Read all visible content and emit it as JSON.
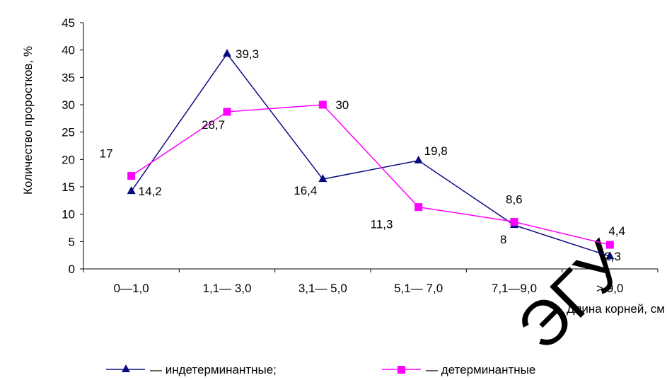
{
  "colors": {
    "indeterminate": "#0b0b80",
    "determinate": "#ff00ff",
    "axis": "#000000",
    "watermark": "#e6e6e6"
  },
  "chart_data": {
    "type": "line",
    "title": "",
    "xlabel": "Длина корней, см",
    "ylabel": "Количество проростков, %",
    "categories": [
      "0—1,0",
      "1,1— 3,0",
      "3,1— 5,0",
      "5,1— 7,0",
      "7,1—9,0",
      "> 9,0"
    ],
    "ylim": [
      0,
      45
    ],
    "yticks": [
      "0",
      "5",
      "10",
      "15",
      "20",
      "25",
      "30",
      "35",
      "40",
      "45"
    ],
    "grid": false,
    "legend_position": "bottom",
    "series": [
      {
        "name": "— индетерминантные;",
        "marker": "triangle",
        "values": [
          14.2,
          39.3,
          16.4,
          19.8,
          8,
          2.3
        ],
        "labels": [
          "14,2",
          "39,3",
          "16,4",
          "19,8",
          "8",
          "2,3"
        ]
      },
      {
        "name": "— детерминантные",
        "marker": "square",
        "values": [
          17,
          28.7,
          30,
          11.3,
          8.6,
          4.4
        ],
        "labels": [
          "17",
          "28,7",
          "30",
          "11,3",
          "8,6",
          "4,4"
        ]
      }
    ]
  },
  "watermark": "ЭГУ"
}
